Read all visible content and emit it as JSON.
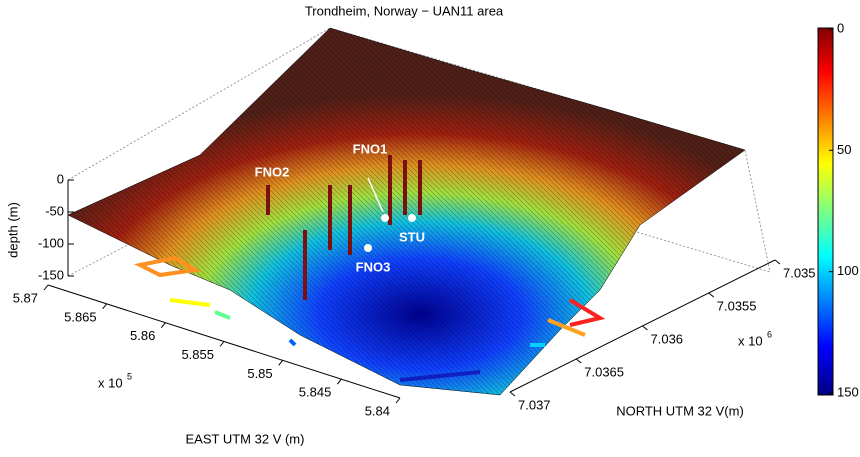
{
  "chart_data": {
    "type": "surface3d",
    "title": "Trondheim, Norway − UAN11 area",
    "xlabel": "EAST UTM 32 V (m)",
    "ylabel": "NORTH UTM 32 V(m)",
    "zlabel": "depth (m)",
    "xlim": [
      5.84,
      5.87
    ],
    "xticks": [
      5.87,
      5.865,
      5.86,
      5.855,
      5.85,
      5.845,
      5.84
    ],
    "x_multiplier": {
      "text": "x 10",
      "power": "5"
    },
    "ylim": [
      7.035,
      7.037
    ],
    "yticks": [
      7.035,
      7.0355,
      7.036,
      7.0365,
      7.037
    ],
    "y_multiplier": {
      "text": "x 10",
      "power": "6"
    },
    "zlim": [
      -150,
      0
    ],
    "zticks": [
      0,
      -50,
      -100,
      -150
    ],
    "clim": [
      0,
      150
    ],
    "cticks": [
      0,
      50,
      100,
      150
    ],
    "annotations": [
      "FNO1",
      "FNO2",
      "STU",
      "FNO3"
    ]
  }
}
